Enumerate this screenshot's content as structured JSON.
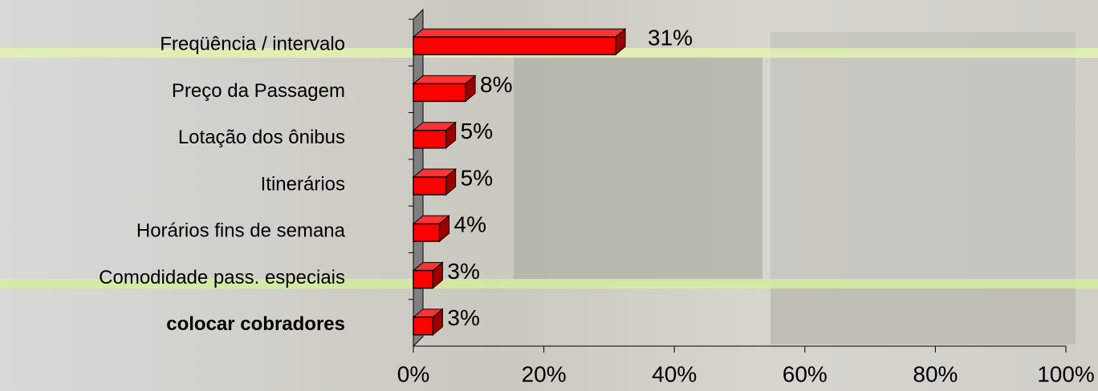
{
  "chart_data": {
    "type": "bar",
    "orientation": "horizontal",
    "categories": [
      "Freqüência / intervalo",
      "Preço da Passagem",
      "Lotação dos ônibus",
      "Itinerários",
      "Horários fins de semana",
      "Comodidade pass. especiais",
      "colocar cobradores"
    ],
    "values": [
      31,
      8,
      5,
      5,
      4,
      3,
      3
    ],
    "value_labels": [
      "31%",
      "8%",
      "5%",
      "5%",
      "4%",
      "3%",
      "3%"
    ],
    "color": "#ff0000",
    "xlim": [
      0,
      100
    ],
    "xticks": [
      {
        "value": 0,
        "label": "0%"
      },
      {
        "value": 20,
        "label": "20%"
      },
      {
        "value": 40,
        "label": "40%"
      },
      {
        "value": 60,
        "label": "60%"
      },
      {
        "value": 80,
        "label": "80%"
      },
      {
        "value": 100,
        "label": "100%"
      }
    ]
  }
}
